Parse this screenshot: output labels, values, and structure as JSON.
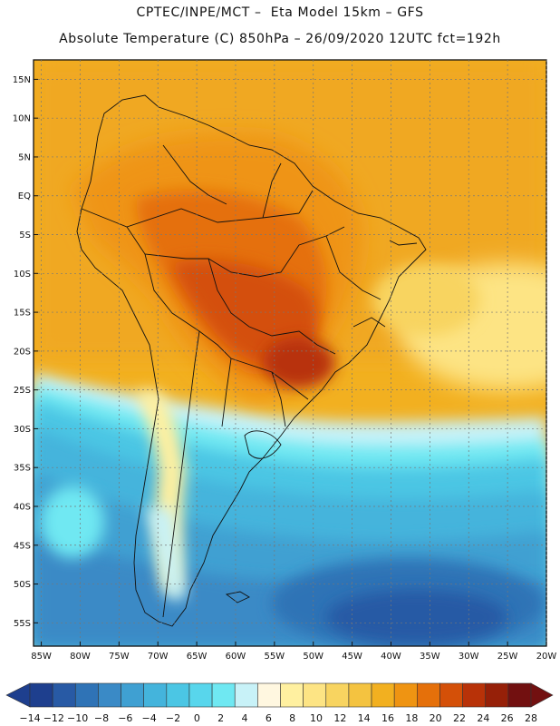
{
  "title": {
    "line1": "CPTEC/INPE/MCT –  Eta Model 15km – GFS",
    "line2": "Absolute Temperature (C) 850hPa – 26/09/2020 12UTC fct=192h"
  },
  "map": {
    "lat_range": [
      -58,
      17.5
    ],
    "lon_range": [
      -86,
      -20
    ],
    "lat_ticks": [
      "15N",
      "10N",
      "5N",
      "EQ",
      "5S",
      "10S",
      "15S",
      "20S",
      "25S",
      "30S",
      "35S",
      "40S",
      "45S",
      "50S",
      "55S"
    ],
    "lat_values": [
      15,
      10,
      5,
      0,
      -5,
      -10,
      -15,
      -20,
      -25,
      -30,
      -35,
      -40,
      -45,
      -50,
      -55
    ],
    "lon_ticks": [
      "85W",
      "80W",
      "75W",
      "70W",
      "65W",
      "60W",
      "55W",
      "50W",
      "45W",
      "40W",
      "35W",
      "30W",
      "25W",
      "20W"
    ],
    "lon_values": [
      -85,
      -80,
      -75,
      -70,
      -65,
      -60,
      -55,
      -50,
      -45,
      -40,
      -35,
      -30,
      -25,
      -20
    ]
  },
  "colorbar": {
    "labels": [
      "-14",
      "-12",
      "-10",
      "-8",
      "-6",
      "-4",
      "-2",
      "0",
      "2",
      "4",
      "6",
      "8",
      "10",
      "12",
      "14",
      "16",
      "18",
      "20",
      "22",
      "24",
      "26",
      "28"
    ],
    "colors": [
      "#1e3f8e",
      "#285aa5",
      "#2f73b6",
      "#3a8ac6",
      "#3fa0d2",
      "#44b4dc",
      "#4bc6e4",
      "#58d6ec",
      "#6fe8f2",
      "#c8f2f8",
      "#fff7e0",
      "#fff0a0",
      "#fde484",
      "#f8d460",
      "#f4c340",
      "#f2b020",
      "#ef9412",
      "#e5700a",
      "#d45008",
      "#b83208",
      "#962008",
      "#721010"
    ]
  }
}
